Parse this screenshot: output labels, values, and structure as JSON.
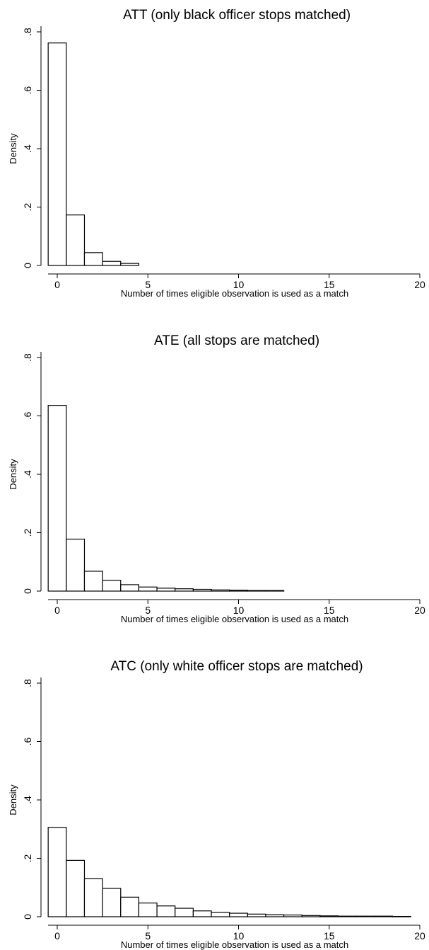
{
  "chart_data": [
    {
      "type": "bar",
      "title": "ATT (only black officer stops matched)",
      "xlabel": "Number of times eligible observation is used as a match",
      "ylabel": "Density",
      "x_ticks": [
        "0",
        "5",
        "10",
        "15",
        "20"
      ],
      "y_ticks": [
        "0",
        ".2",
        ".4",
        ".6",
        ".8"
      ],
      "xlim": [
        -0.5,
        20
      ],
      "ylim": [
        0,
        0.8
      ],
      "x": [
        0,
        1,
        2,
        3,
        4
      ],
      "values": [
        0.762,
        0.173,
        0.044,
        0.014,
        0.007
      ]
    },
    {
      "type": "bar",
      "title": "ATE (all stops are matched)",
      "xlabel": "Number of times eligible observation is used as a match",
      "ylabel": "Density",
      "x_ticks": [
        "0",
        "5",
        "10",
        "15",
        "20"
      ],
      "y_ticks": [
        "0",
        ".2",
        ".4",
        ".6",
        ".8"
      ],
      "xlim": [
        -0.5,
        20
      ],
      "ylim": [
        0,
        0.8
      ],
      "x": [
        0,
        1,
        2,
        3,
        4,
        5,
        6,
        7,
        8,
        9,
        10,
        11,
        12
      ],
      "values": [
        0.636,
        0.178,
        0.068,
        0.037,
        0.022,
        0.014,
        0.01,
        0.008,
        0.006,
        0.004,
        0.003,
        0.002,
        0.002
      ]
    },
    {
      "type": "bar",
      "title": "ATC (only white officer stops are matched)",
      "xlabel": "Number of times eligible observation is used as a match",
      "ylabel": "Density",
      "x_ticks": [
        "0",
        "5",
        "10",
        "15",
        "20"
      ],
      "y_ticks": [
        "0",
        ".2",
        ".4",
        ".6",
        ".8"
      ],
      "xlim": [
        -0.5,
        20
      ],
      "ylim": [
        0,
        0.8
      ],
      "x": [
        0,
        1,
        2,
        3,
        4,
        5,
        6,
        7,
        8,
        9,
        10,
        11,
        12,
        13,
        14,
        15,
        16,
        17,
        18,
        19
      ],
      "values": [
        0.306,
        0.193,
        0.13,
        0.097,
        0.067,
        0.047,
        0.037,
        0.029,
        0.02,
        0.015,
        0.012,
        0.009,
        0.007,
        0.006,
        0.004,
        0.003,
        0.002,
        0.002,
        0.002,
        0.001
      ]
    }
  ]
}
